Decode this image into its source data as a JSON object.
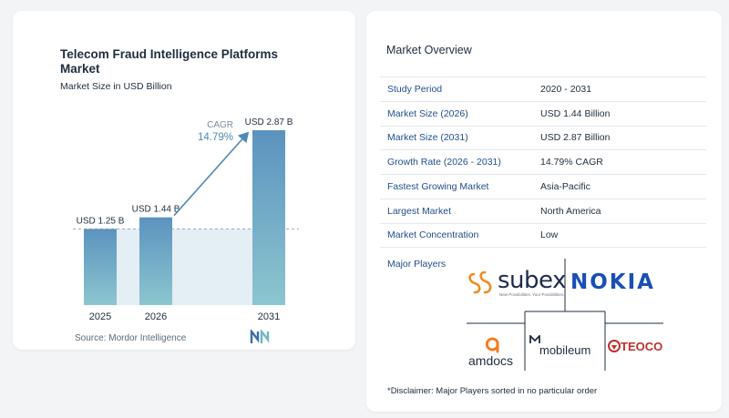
{
  "chart_data": {
    "type": "bar",
    "title": "Telecom Fraud Intelligence Platforms Market",
    "subtitle": "Market Size in USD Billion",
    "categories": [
      "2025",
      "2026",
      "2031"
    ],
    "values": [
      1.25,
      1.44,
      2.87
    ],
    "data_labels": [
      "USD 1.25 B",
      "USD 1.44 B",
      "USD 2.87 B"
    ],
    "cagr_label": "CAGR",
    "cagr_value": "14.79%",
    "ylim": [
      0,
      2.87
    ]
  },
  "source": "Source:  Mordor Intelligence",
  "overview": {
    "title": "Market Overview",
    "rows": [
      {
        "key": "Study Period",
        "value": "2020 - 2031"
      },
      {
        "key": "Market Size (2026)",
        "value": "USD 1.44 Billion"
      },
      {
        "key": "Market Size (2031)",
        "value": "USD 2.87 Billion"
      },
      {
        "key": "Growth Rate (2026 - 2031)",
        "value": "14.79% CAGR"
      },
      {
        "key": "Fastest Growing Market",
        "value": "Asia-Pacific"
      },
      {
        "key": "Largest Market",
        "value": "North America"
      },
      {
        "key": "Market Concentration",
        "value": "Low"
      }
    ],
    "major_players_label": "Major Players",
    "players": {
      "subex": "subex",
      "subex_tagline": "New Possibilities. Your Possibilities.",
      "nokia": "NOKIA",
      "amdocs": "amdocs",
      "mobileum": "mobileum",
      "teoco": "TEOCO"
    },
    "disclaimer": "*Disclaimer: Major Players sorted in no particular order"
  },
  "colors": {
    "bar_top": "#5b93bf",
    "bar_bottom": "#8cc6cf",
    "accent": "#4f89b5",
    "subex_orange": "#f28c1e",
    "amdocs_orange": "#f47b20",
    "teoco_red": "#c0302c"
  }
}
